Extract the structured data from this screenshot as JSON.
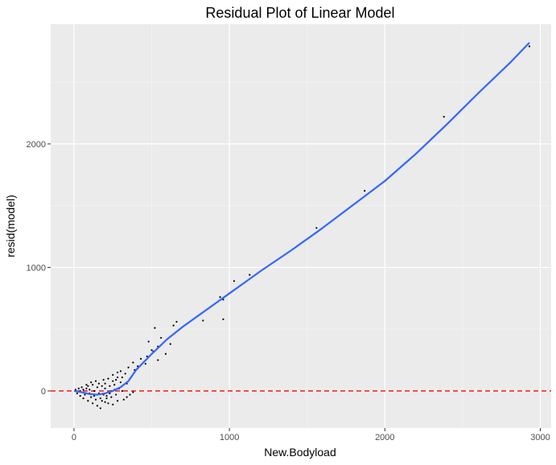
{
  "chart_data": {
    "type": "scatter",
    "title": "Residual Plot of Linear Model",
    "xlabel": "New.Bodyload",
    "ylabel": "resid(model)",
    "xlim": [
      -150,
      3070
    ],
    "ylim": [
      -300,
      2970
    ],
    "x_ticks": [
      0,
      1000,
      2000,
      3000
    ],
    "x_tick_labels": [
      "0",
      "1000",
      "2000",
      "3000"
    ],
    "y_ticks": [
      0,
      1000,
      2000
    ],
    "y_tick_labels": [
      "0",
      "1000",
      "2000"
    ],
    "grid": true,
    "legend": "none",
    "reference_line": {
      "y": 0,
      "style": "dashed",
      "color": "#ff0000"
    },
    "series": [
      {
        "kind": "points",
        "color": "#000000",
        "points": [
          [
            2930,
            2790
          ],
          [
            2380,
            2220
          ],
          [
            1870,
            1620
          ],
          [
            1560,
            1320
          ],
          [
            1130,
            940
          ],
          [
            1030,
            890
          ],
          [
            940,
            760
          ],
          [
            960,
            740
          ],
          [
            960,
            580
          ],
          [
            830,
            570
          ],
          [
            660,
            560
          ],
          [
            640,
            530
          ],
          [
            520,
            510
          ],
          [
            650,
            470
          ],
          [
            560,
            430
          ],
          [
            480,
            400
          ],
          [
            620,
            380
          ],
          [
            540,
            360
          ],
          [
            500,
            330
          ],
          [
            510,
            320
          ],
          [
            590,
            300
          ],
          [
            470,
            280
          ],
          [
            430,
            260
          ],
          [
            540,
            250
          ],
          [
            380,
            230
          ],
          [
            460,
            220
          ],
          [
            410,
            200
          ],
          [
            350,
            190
          ],
          [
            390,
            170
          ],
          [
            300,
            160
          ],
          [
            330,
            140
          ],
          [
            280,
            150
          ],
          [
            250,
            130
          ],
          [
            310,
            110
          ],
          [
            360,
            100
          ],
          [
            270,
            90
          ],
          [
            220,
            100
          ],
          [
            300,
            70
          ],
          [
            340,
            60
          ],
          [
            200,
            60
          ],
          [
            260,
            50
          ],
          [
            180,
            40
          ],
          [
            380,
            -10
          ],
          [
            360,
            -30
          ],
          [
            340,
            -50
          ],
          [
            320,
            -70
          ],
          [
            280,
            -80
          ],
          [
            250,
            -110
          ],
          [
            220,
            -100
          ],
          [
            170,
            -140
          ],
          [
            150,
            -120
          ],
          [
            120,
            -100
          ],
          [
            90,
            -80
          ],
          [
            60,
            -60
          ],
          [
            40,
            -40
          ],
          [
            20,
            -20
          ],
          [
            10,
            10
          ],
          [
            30,
            20
          ],
          [
            50,
            30
          ],
          [
            80,
            20
          ],
          [
            100,
            10
          ],
          [
            130,
            0
          ],
          [
            160,
            -20
          ],
          [
            190,
            -30
          ],
          [
            210,
            -40
          ],
          [
            230,
            -20
          ],
          [
            240,
            0
          ],
          [
            260,
            10
          ],
          [
            290,
            20
          ],
          [
            310,
            0
          ],
          [
            70,
            -30
          ],
          [
            110,
            -50
          ],
          [
            140,
            -70
          ],
          [
            180,
            -80
          ],
          [
            200,
            -90
          ],
          [
            150,
            30
          ],
          [
            120,
            50
          ],
          [
            90,
            40
          ],
          [
            60,
            10
          ],
          [
            40,
            0
          ],
          [
            100,
            -20
          ],
          [
            130,
            -40
          ],
          [
            170,
            -60
          ],
          [
            210,
            -60
          ],
          [
            240,
            -50
          ],
          [
            270,
            -30
          ],
          [
            200,
            20
          ],
          [
            230,
            40
          ],
          [
            160,
            60
          ],
          [
            140,
            80
          ],
          [
            110,
            70
          ],
          [
            80,
            50
          ],
          [
            190,
            90
          ],
          [
            250,
            80
          ],
          [
            280,
            110
          ]
        ]
      },
      {
        "kind": "smooth",
        "color": "#3366ff",
        "points": [
          [
            0,
            0
          ],
          [
            50,
            -10
          ],
          [
            100,
            -25
          ],
          [
            150,
            -30
          ],
          [
            200,
            -20
          ],
          [
            250,
            0
          ],
          [
            300,
            30
          ],
          [
            350,
            80
          ],
          [
            400,
            170
          ],
          [
            500,
            300
          ],
          [
            600,
            420
          ],
          [
            700,
            520
          ],
          [
            800,
            610
          ],
          [
            900,
            700
          ],
          [
            1000,
            790
          ],
          [
            1100,
            880
          ],
          [
            1200,
            970
          ],
          [
            1400,
            1140
          ],
          [
            1600,
            1320
          ],
          [
            1800,
            1510
          ],
          [
            2000,
            1700
          ],
          [
            2200,
            1920
          ],
          [
            2400,
            2160
          ],
          [
            2600,
            2410
          ],
          [
            2800,
            2650
          ],
          [
            2930,
            2820
          ]
        ]
      }
    ]
  }
}
